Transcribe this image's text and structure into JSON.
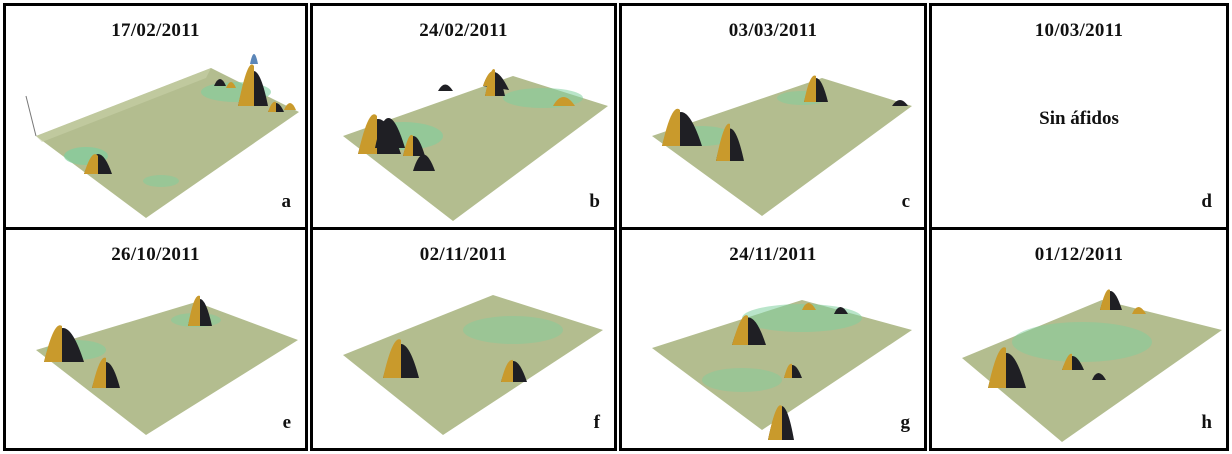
{
  "figure": {
    "panels": [
      {
        "title": "17/02/2011",
        "letter": "a",
        "note": ""
      },
      {
        "title": "24/02/2011",
        "letter": "b",
        "note": ""
      },
      {
        "title": "03/03/2011",
        "letter": "c",
        "note": ""
      },
      {
        "title": "10/03/2011",
        "letter": "d",
        "note": "Sin áfidos"
      },
      {
        "title": "26/10/2011",
        "letter": "e",
        "note": ""
      },
      {
        "title": "02/11/2011",
        "letter": "f",
        "note": ""
      },
      {
        "title": "24/11/2011",
        "letter": "g",
        "note": ""
      },
      {
        "title": "01/12/2011",
        "letter": "h",
        "note": ""
      }
    ]
  },
  "colors": {
    "surface": "#b3bd8f",
    "surface_light": "#c8d0a8",
    "peak_dark": "#1f1f24",
    "peak_gold": "#c99a2c",
    "peak_blue": "#5b86b8",
    "patch_green": "#7fcf9e",
    "border": "#000000"
  }
}
